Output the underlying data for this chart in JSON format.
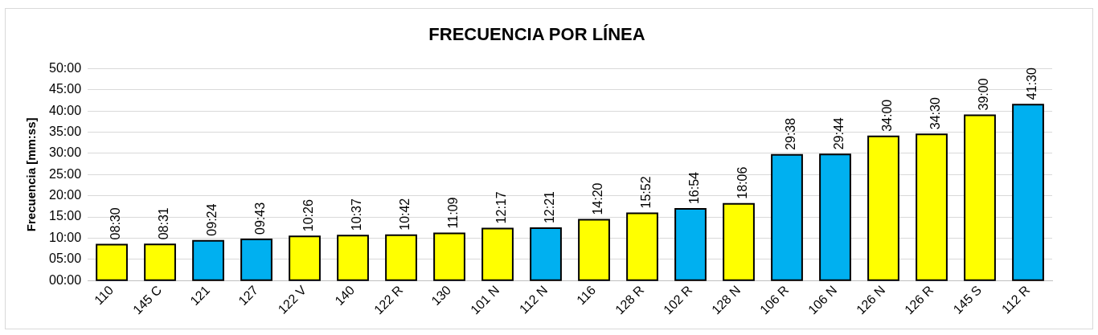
{
  "chart_data": {
    "type": "bar",
    "title": "FRECUENCIA POR LÍNEA",
    "ylabel": "Frecuencia [mm:ss]",
    "categories": [
      "110",
      "145 C",
      "121",
      "127",
      "122 V",
      "140",
      "122 R",
      "130",
      "101 N",
      "112 N",
      "116",
      "128 R",
      "102 R",
      "128 N",
      "106 R",
      "106 N",
      "126 N",
      "126 R",
      "145 S",
      "112 R"
    ],
    "values": [
      8.5,
      8.5167,
      9.4,
      9.7167,
      10.4333,
      10.6167,
      10.7,
      11.15,
      12.2833,
      12.35,
      14.3333,
      15.8667,
      16.9,
      18.1,
      29.6333,
      29.7333,
      34,
      34.5,
      39,
      41.5
    ],
    "colors": [
      "#ffff00",
      "#ffff00",
      "#00b0f0",
      "#00b0f0",
      "#ffff00",
      "#ffff00",
      "#ffff00",
      "#ffff00",
      "#ffff00",
      "#00b0f0",
      "#ffff00",
      "#ffff00",
      "#00b0f0",
      "#ffff00",
      "#00b0f0",
      "#00b0f0",
      "#ffff00",
      "#ffff00",
      "#ffff00",
      "#00b0f0"
    ],
    "value_labels": [
      "08:30",
      "08:31",
      "09:24",
      "09:43",
      "10:26",
      "10:37",
      "10:42",
      "11:09",
      "12:17",
      "12:21",
      "14:20",
      "15:52",
      "16:54",
      "18:06",
      "29:38",
      "29:44",
      "34:00",
      "34:30",
      "39:00",
      "41:30"
    ],
    "ylim": [
      0,
      50
    ],
    "yticks": [
      {
        "value": 0,
        "label": "00:00"
      },
      {
        "value": 5,
        "label": "05:00"
      },
      {
        "value": 10,
        "label": "10:00"
      },
      {
        "value": 15,
        "label": "15:00"
      },
      {
        "value": 20,
        "label": "20:00"
      },
      {
        "value": 25,
        "label": "25:00"
      },
      {
        "value": 30,
        "label": "30:00"
      },
      {
        "value": 35,
        "label": "35:00"
      },
      {
        "value": 40,
        "label": "40:00"
      },
      {
        "value": 45,
        "label": "45:00"
      },
      {
        "value": 50,
        "label": "50:00"
      }
    ],
    "grid": "y",
    "legend": false
  }
}
